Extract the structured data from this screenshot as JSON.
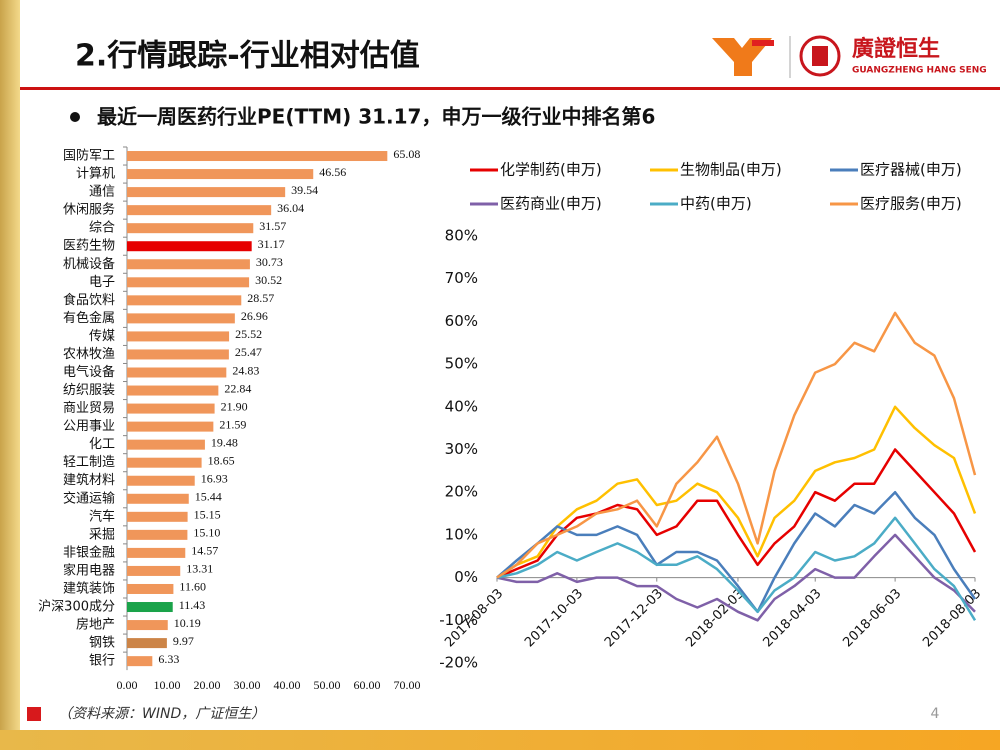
{
  "header": {
    "title": "2.行情跟踪-行业相对估值",
    "logo_text": "廣證恒生",
    "logo_subtext": "GUANGZHENG HANG SENG"
  },
  "bullet": "最近一周医药行业PE(TTM) 31.17，申万一级行业中排名第6",
  "chart_data": [
    {
      "type": "bar",
      "orientation": "horizontal",
      "categories": [
        "国防军工",
        "计算机",
        "通信",
        "休闲服务",
        "综合",
        "医药生物",
        "机械设备",
        "电子",
        "食品饮料",
        "有色金属",
        "传媒",
        "农林牧渔",
        "电气设备",
        "纺织服装",
        "商业贸易",
        "公用事业",
        "化工",
        "轻工制造",
        "建筑材料",
        "交通运输",
        "汽车",
        "采掘",
        "非银金融",
        "家用电器",
        "建筑装饰",
        "沪深300成分",
        "房地产",
        "钢铁",
        "银行"
      ],
      "values": [
        65.08,
        46.56,
        39.54,
        36.04,
        31.57,
        31.17,
        30.73,
        30.52,
        28.57,
        26.96,
        25.52,
        25.47,
        24.83,
        22.84,
        21.9,
        21.59,
        19.48,
        18.65,
        16.93,
        15.44,
        15.15,
        15.1,
        14.57,
        13.31,
        11.6,
        11.43,
        10.19,
        9.97,
        6.33
      ],
      "value_labels": [
        "65.08",
        "46.56",
        "39.54",
        "36.04",
        "31.57",
        "31.17",
        "30.73",
        "30.52",
        "28.57",
        "26.96",
        "25.52",
        "25.47",
        "24.83",
        "22.84",
        "21.90",
        "21.59",
        "19.48",
        "18.65",
        "16.93",
        "15.44",
        "15.15",
        "15.10",
        "14.57",
        "13.31",
        "11.60",
        "11.43",
        "10.19",
        "9.97",
        "6.33"
      ],
      "colors": [
        "#f0965a",
        "#f0965a",
        "#f0965a",
        "#f0965a",
        "#f0965a",
        "#e60000",
        "#f0965a",
        "#f0965a",
        "#f0965a",
        "#f0965a",
        "#f0965a",
        "#f0965a",
        "#f0965a",
        "#f0965a",
        "#f0965a",
        "#f0965a",
        "#f0965a",
        "#f0965a",
        "#f0965a",
        "#f0965a",
        "#f0965a",
        "#f0965a",
        "#f0965a",
        "#f0965a",
        "#f0965a",
        "#1aa34a",
        "#f0965a",
        "#cc8447",
        "#f0965a"
      ],
      "xlim": [
        0,
        70
      ],
      "xticks": [
        {
          "value": 0,
          "label": "0.00"
        },
        {
          "value": 10,
          "label": "10.00"
        },
        {
          "value": 20,
          "label": "20.00"
        },
        {
          "value": 30,
          "label": "30.00"
        },
        {
          "value": 40,
          "label": "40.00"
        },
        {
          "value": 50,
          "label": "50.00"
        },
        {
          "value": 60,
          "label": "60.00"
        },
        {
          "value": 70,
          "label": "70.00"
        }
      ]
    },
    {
      "type": "line",
      "x": [
        "2017-08-03",
        "2017-08-18",
        "2017-09-03",
        "2017-09-18",
        "2017-10-03",
        "2017-10-18",
        "2017-11-03",
        "2017-11-18",
        "2017-12-03",
        "2017-12-18",
        "2018-01-03",
        "2018-01-18",
        "2018-02-03",
        "2018-02-18",
        "2018-03-03",
        "2018-03-18",
        "2018-04-03",
        "2018-04-18",
        "2018-05-03",
        "2018-05-18",
        "2018-06-03",
        "2018-06-18",
        "2018-07-03",
        "2018-07-18",
        "2018-08-03"
      ],
      "xlim": [
        "2017-08-03",
        "2018-08-03"
      ],
      "xticks": [
        "2017-08-03",
        "2017-10-03",
        "2017-12-03",
        "2018-02-03",
        "2018-04-03",
        "2018-06-03",
        "2018-08-03"
      ],
      "ylim": [
        -20,
        80
      ],
      "yticks": [
        {
          "value": -20,
          "label": "-20%"
        },
        {
          "value": -10,
          "label": "-10%"
        },
        {
          "value": 0,
          "label": "0%"
        },
        {
          "value": 10,
          "label": "10%"
        },
        {
          "value": 20,
          "label": "20%"
        },
        {
          "value": 30,
          "label": "30%"
        },
        {
          "value": 40,
          "label": "40%"
        },
        {
          "value": 50,
          "label": "50%"
        },
        {
          "value": 60,
          "label": "60%"
        },
        {
          "value": 70,
          "label": "70%"
        },
        {
          "value": 80,
          "label": "80%"
        }
      ],
      "series": [
        {
          "name": "化学制药(申万)",
          "color": "#e60000",
          "values": [
            0,
            2,
            4,
            10,
            14,
            15,
            17,
            16,
            10,
            12,
            18,
            18,
            10,
            3,
            8,
            12,
            20,
            18,
            22,
            22,
            30,
            25,
            20,
            15,
            6
          ]
        },
        {
          "name": "生物制品(申万)",
          "color": "#ffc000",
          "values": [
            0,
            3,
            5,
            12,
            16,
            18,
            22,
            23,
            17,
            18,
            22,
            20,
            14,
            5,
            14,
            18,
            25,
            27,
            28,
            30,
            40,
            35,
            31,
            28,
            15
          ]
        },
        {
          "name": "医疗器械(申万)",
          "color": "#4a7ebb",
          "values": [
            0,
            4,
            8,
            12,
            10,
            10,
            12,
            10,
            3,
            6,
            6,
            4,
            -2,
            -8,
            0,
            8,
            15,
            12,
            17,
            15,
            20,
            14,
            10,
            2,
            -5
          ]
        },
        {
          "name": "医药商业(申万)",
          "color": "#7f60a8",
          "values": [
            0,
            -1,
            -1,
            1,
            -1,
            0,
            0,
            -2,
            -2,
            -5,
            -7,
            -5,
            -8,
            -10,
            -5,
            -2,
            2,
            0,
            0,
            5,
            10,
            5,
            0,
            -3,
            -8
          ]
        },
        {
          "name": "中药(申万)",
          "color": "#4bacc6",
          "values": [
            0,
            1,
            3,
            6,
            4,
            6,
            8,
            6,
            3,
            3,
            5,
            2,
            -3,
            -8,
            -3,
            0,
            6,
            4,
            5,
            8,
            14,
            8,
            2,
            -2,
            -10
          ]
        },
        {
          "name": "医疗服务(申万)",
          "color": "#f79646",
          "values": [
            0,
            3,
            8,
            10,
            12,
            15,
            16,
            18,
            12,
            22,
            27,
            33,
            22,
            8,
            25,
            38,
            48,
            50,
            55,
            53,
            62,
            55,
            52,
            42,
            24
          ]
        }
      ]
    }
  ],
  "footer": {
    "source": "（资料来源：WIND，广证恒生）",
    "page": "4"
  }
}
